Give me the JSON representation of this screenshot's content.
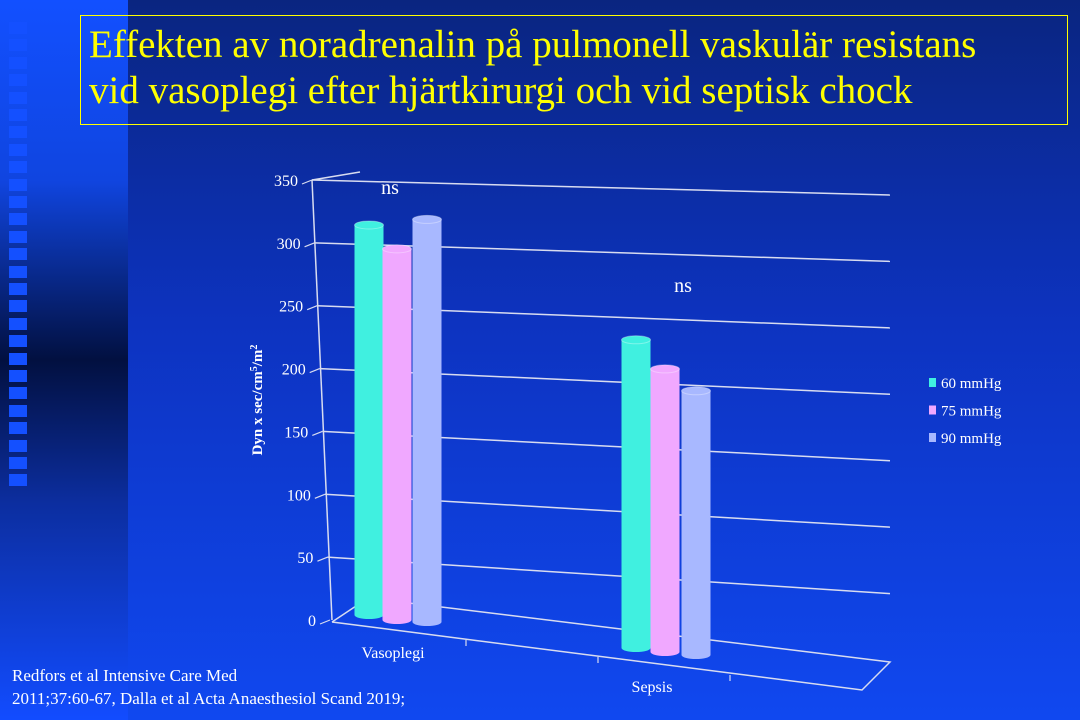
{
  "title": {
    "line1": "Effekten av noradrenalin på pulmonell vaskulär resistans",
    "line2": "vid vasoplegi efter hjärtkirurgi och vid septisk chock"
  },
  "reference": {
    "line1": "Redfors et al Intensive  Care Med",
    "line2": "2011;37:60-67, Dalla et al Acta Anaesthesiol  Scand 2019;"
  },
  "chart_data": {
    "type": "bar",
    "style": "3d-cylinder",
    "categories": [
      "Vasoplegi",
      "Sepsis"
    ],
    "series": [
      {
        "name": "60 mmHg",
        "values": [
          310,
          245
        ],
        "color": "#40f0e0"
      },
      {
        "name": "75 mmHg",
        "values": [
          295,
          225
        ],
        "color": "#f0a8ff"
      },
      {
        "name": "90 mmHg",
        "values": [
          320,
          210
        ],
        "color": "#a8b8ff"
      }
    ],
    "annotations": [
      "ns",
      "ns"
    ],
    "ylabel": "Dyn x sec/cm5/m2",
    "ylabel_parts": {
      "base": "Dyn x sec/cm",
      "sup1": "5",
      "mid": "/m",
      "sup2": "2"
    },
    "yticks": [
      "0",
      "50",
      "100",
      "150",
      "200",
      "250",
      "300",
      "350"
    ],
    "ylim": [
      0,
      350
    ],
    "grid": true,
    "legend": "right"
  }
}
